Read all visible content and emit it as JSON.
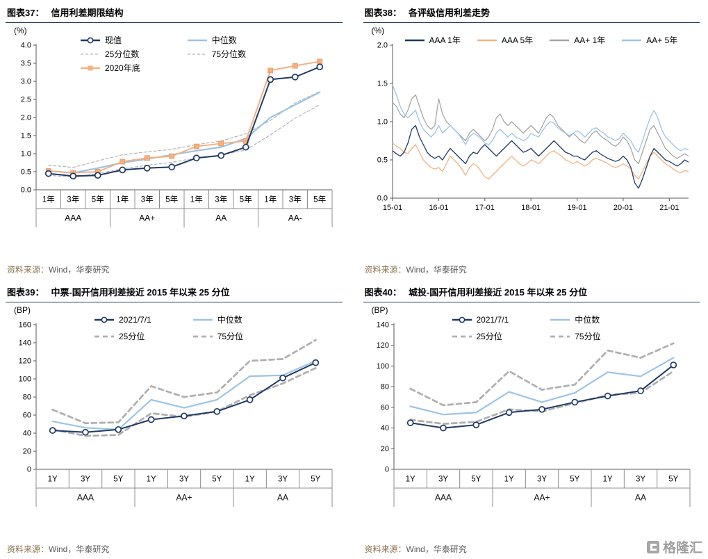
{
  "page": {
    "watermark": "格隆汇"
  },
  "chart_data": [
    {
      "id": "c37",
      "type": "line",
      "x_type": "category-grouped",
      "label": "图表37：",
      "title": "信用利差期限结构",
      "unit": "(%)",
      "source_label": "资料来源：",
      "source": "Wind，华泰研究",
      "ylim": [
        0,
        4.0
      ],
      "ystep": 0.5,
      "ydecimals": 1,
      "groups": [
        {
          "label": "AAA",
          "cats": [
            "1年",
            "3年",
            "5年"
          ]
        },
        {
          "label": "AA+",
          "cats": [
            "1年",
            "3年",
            "5年"
          ]
        },
        {
          "label": "AA",
          "cats": [
            "1年",
            "3年",
            "5年"
          ]
        },
        {
          "label": "AA-",
          "cats": [
            "1年",
            "3年",
            "5年"
          ]
        }
      ],
      "series": [
        {
          "name": "现值",
          "color": "#1f3864",
          "width": 2,
          "marker": "circle",
          "z": 5,
          "values": [
            0.45,
            0.38,
            0.4,
            0.55,
            0.6,
            0.63,
            0.88,
            0.95,
            1.18,
            3.05,
            3.12,
            3.4
          ]
        },
        {
          "name": "中位数",
          "color": "#9dc3e6",
          "width": 2.2,
          "z": 3,
          "values": [
            0.52,
            0.47,
            0.6,
            0.75,
            0.85,
            0.97,
            1.08,
            1.18,
            1.42,
            2.0,
            2.35,
            2.7
          ]
        },
        {
          "name": "25分位数",
          "color": "#b3b3b3",
          "width": 1.2,
          "dash": "4 3",
          "z": 1,
          "values": [
            0.4,
            0.35,
            0.45,
            0.58,
            0.68,
            0.76,
            0.88,
            0.96,
            1.1,
            1.52,
            1.98,
            2.35
          ]
        },
        {
          "name": "75分位数",
          "color": "#b3b3b3",
          "width": 1.2,
          "dash": "4 3",
          "z": 1,
          "values": [
            0.68,
            0.62,
            0.8,
            0.97,
            1.05,
            1.12,
            1.25,
            1.35,
            1.55,
            1.92,
            2.4,
            2.72
          ]
        },
        {
          "name": "2020年底",
          "color": "#f4b183",
          "width": 2,
          "marker": "square",
          "z": 4,
          "values": [
            0.52,
            0.47,
            0.5,
            0.78,
            0.88,
            0.93,
            1.2,
            1.28,
            1.35,
            3.3,
            3.43,
            3.55
          ]
        }
      ]
    },
    {
      "id": "c38",
      "type": "line",
      "x_type": "time",
      "label": "图表38：",
      "title": "各评级信用利差走势",
      "unit": "(%)",
      "source_label": "资料来源：",
      "source": "Wind，华泰研究",
      "ylim": [
        0,
        2.0
      ],
      "ystep": 0.5,
      "ydecimals": 1,
      "xticklabels": [
        "15-01",
        "16-01",
        "17-01",
        "18-01",
        "19-01",
        "20-01",
        "21-01"
      ],
      "xtick_every": 12,
      "series": [
        {
          "name": "AAA 1年",
          "color": "#1f3864",
          "width": 1.3,
          "z": 4,
          "values": [
            0.62,
            0.58,
            0.55,
            0.6,
            0.72,
            0.9,
            0.95,
            0.8,
            0.7,
            0.6,
            0.55,
            0.52,
            0.55,
            0.5,
            0.58,
            0.65,
            0.6,
            0.55,
            0.5,
            0.45,
            0.55,
            0.6,
            0.58,
            0.65,
            0.7,
            0.65,
            0.6,
            0.55,
            0.6,
            0.65,
            0.7,
            0.75,
            0.7,
            0.65,
            0.6,
            0.62,
            0.65,
            0.6,
            0.55,
            0.6,
            0.65,
            0.7,
            0.75,
            0.7,
            0.65,
            0.6,
            0.58,
            0.55,
            0.55,
            0.52,
            0.5,
            0.55,
            0.6,
            0.62,
            0.58,
            0.55,
            0.52,
            0.5,
            0.48,
            0.5,
            0.55,
            0.5,
            0.4,
            0.2,
            0.13,
            0.25,
            0.4,
            0.55,
            0.65,
            0.6,
            0.55,
            0.5,
            0.48,
            0.45,
            0.42,
            0.45,
            0.5,
            0.47
          ]
        },
        {
          "name": "AAA 5年",
          "color": "#f4b183",
          "width": 1.3,
          "z": 3,
          "values": [
            0.72,
            0.68,
            0.65,
            0.6,
            0.58,
            0.65,
            0.7,
            0.6,
            0.5,
            0.45,
            0.4,
            0.38,
            0.4,
            0.35,
            0.45,
            0.55,
            0.5,
            0.45,
            0.38,
            0.3,
            0.4,
            0.45,
            0.42,
            0.35,
            0.28,
            0.25,
            0.3,
            0.35,
            0.4,
            0.45,
            0.5,
            0.55,
            0.5,
            0.45,
            0.42,
            0.45,
            0.5,
            0.48,
            0.45,
            0.5,
            0.55,
            0.6,
            0.62,
            0.58,
            0.55,
            0.5,
            0.48,
            0.45,
            0.48,
            0.45,
            0.42,
            0.45,
            0.5,
            0.52,
            0.5,
            0.48,
            0.45,
            0.42,
            0.4,
            0.42,
            0.45,
            0.42,
            0.38,
            0.3,
            0.25,
            0.35,
            0.45,
            0.55,
            0.6,
            0.55,
            0.5,
            0.45,
            0.42,
            0.38,
            0.35,
            0.33,
            0.36,
            0.35
          ]
        },
        {
          "name": "AA+ 1年",
          "color": "#a6a6a6",
          "width": 1.3,
          "z": 1,
          "values": [
            1.25,
            1.2,
            1.1,
            1.05,
            1.15,
            1.3,
            1.35,
            1.2,
            1.05,
            0.95,
            0.9,
            0.95,
            1.3,
            1.1,
            1.0,
            0.95,
            0.9,
            0.85,
            0.8,
            0.75,
            0.85,
            0.9,
            0.85,
            0.8,
            0.75,
            0.8,
            0.9,
            1.05,
            1.1,
            1.0,
            0.95,
            1.0,
            0.95,
            0.9,
            0.85,
            0.9,
            0.95,
            0.9,
            0.85,
            0.95,
            1.05,
            1.1,
            1.05,
            0.95,
            0.9,
            0.85,
            0.8,
            0.85,
            0.8,
            0.75,
            0.72,
            0.78,
            0.85,
            0.88,
            0.82,
            0.78,
            0.75,
            0.7,
            0.68,
            0.72,
            0.8,
            0.75,
            0.65,
            0.5,
            0.45,
            0.6,
            0.75,
            0.9,
            0.95,
            0.85,
            0.75,
            0.65,
            0.6,
            0.55,
            0.52,
            0.55,
            0.58,
            0.55
          ]
        },
        {
          "name": "AA+ 5年",
          "color": "#9dc3e6",
          "width": 1.3,
          "z": 2,
          "values": [
            1.48,
            1.35,
            1.2,
            1.1,
            1.05,
            1.1,
            1.15,
            1.0,
            0.9,
            0.85,
            0.8,
            0.85,
            0.95,
            0.85,
            0.9,
            0.95,
            0.9,
            0.85,
            0.78,
            0.7,
            0.8,
            0.85,
            0.82,
            0.78,
            0.72,
            0.7,
            0.75,
            0.85,
            0.9,
            0.85,
            0.8,
            0.85,
            0.8,
            0.78,
            0.75,
            0.78,
            0.85,
            0.82,
            0.8,
            0.88,
            0.95,
            1.0,
            0.98,
            0.92,
            0.88,
            0.85,
            0.82,
            0.85,
            0.88,
            0.85,
            0.8,
            0.85,
            0.9,
            0.92,
            0.88,
            0.85,
            0.8,
            0.78,
            0.75,
            0.78,
            0.85,
            0.8,
            0.75,
            0.65,
            0.6,
            0.75,
            0.9,
            1.05,
            1.15,
            1.05,
            0.9,
            0.8,
            0.75,
            0.7,
            0.65,
            0.62,
            0.65,
            0.63
          ]
        }
      ]
    },
    {
      "id": "c39",
      "type": "line",
      "x_type": "category-grouped",
      "label": "图表39：",
      "title": "中票-国开信用利差接近 2015 年以来 25 分位",
      "unit": "(BP)",
      "source_label": "资料来源：",
      "source": "Wind，华泰研究",
      "ylim": [
        0,
        160
      ],
      "ystep": 20,
      "ydecimals": 0,
      "groups": [
        {
          "label": "AAA",
          "cats": [
            "1Y",
            "3Y",
            "5Y"
          ]
        },
        {
          "label": "AA+",
          "cats": [
            "1Y",
            "3Y",
            "5Y"
          ]
        },
        {
          "label": "AA",
          "cats": [
            "1Y",
            "3Y",
            "5Y"
          ]
        }
      ],
      "series": [
        {
          "name": "2021/7/1",
          "color": "#1f3864",
          "width": 2,
          "marker": "circle",
          "z": 4,
          "values": [
            43,
            41,
            44,
            55,
            59,
            64,
            77,
            101,
            118
          ]
        },
        {
          "name": "中位数",
          "color": "#9dc3e6",
          "width": 2.2,
          "z": 3,
          "values": [
            53,
            46,
            44,
            77,
            68,
            77,
            103,
            104,
            120
          ]
        },
        {
          "name": "25分位",
          "color": "#b0b0b0",
          "width": 2.8,
          "dash": "7 5",
          "z": 1,
          "values": [
            44,
            37,
            38,
            62,
            58,
            64,
            82,
            95,
            112
          ]
        },
        {
          "name": "75分位",
          "color": "#b0b0b0",
          "width": 2.8,
          "dash": "7 5",
          "z": 1,
          "values": [
            66,
            51,
            52,
            92,
            80,
            85,
            120,
            122,
            143
          ]
        }
      ]
    },
    {
      "id": "c40",
      "type": "line",
      "x_type": "category-grouped",
      "label": "图表40：",
      "title": "城投-国开信用利差接近 2015 年以来 25 分位",
      "unit": "(BP)",
      "source_label": "资料来源：",
      "source": "Wind，华泰研究",
      "ylim": [
        0,
        140
      ],
      "ystep": 20,
      "ydecimals": 0,
      "groups": [
        {
          "label": "AAA",
          "cats": [
            "1Y",
            "3Y",
            "5Y"
          ]
        },
        {
          "label": "AA+",
          "cats": [
            "1Y",
            "3Y",
            "5Y"
          ]
        },
        {
          "label": "AA",
          "cats": [
            "1Y",
            "3Y",
            "5Y"
          ]
        }
      ],
      "series": [
        {
          "name": "2021/7/1",
          "color": "#1f3864",
          "width": 2,
          "marker": "circle",
          "z": 4,
          "values": [
            45,
            40,
            43,
            55,
            58,
            65,
            71,
            76,
            101
          ]
        },
        {
          "name": "中位数",
          "color": "#9dc3e6",
          "width": 2.2,
          "z": 3,
          "values": [
            61,
            53,
            55,
            75,
            65,
            74,
            94,
            90,
            108
          ]
        },
        {
          "name": "25分位",
          "color": "#b0b0b0",
          "width": 2.8,
          "dash": "7 5",
          "z": 1,
          "values": [
            48,
            44,
            46,
            58,
            56,
            64,
            72,
            74,
            95
          ]
        },
        {
          "name": "75分位",
          "color": "#b0b0b0",
          "width": 2.8,
          "dash": "7 5",
          "z": 1,
          "values": [
            78,
            62,
            65,
            95,
            77,
            82,
            115,
            108,
            122
          ]
        }
      ]
    }
  ]
}
